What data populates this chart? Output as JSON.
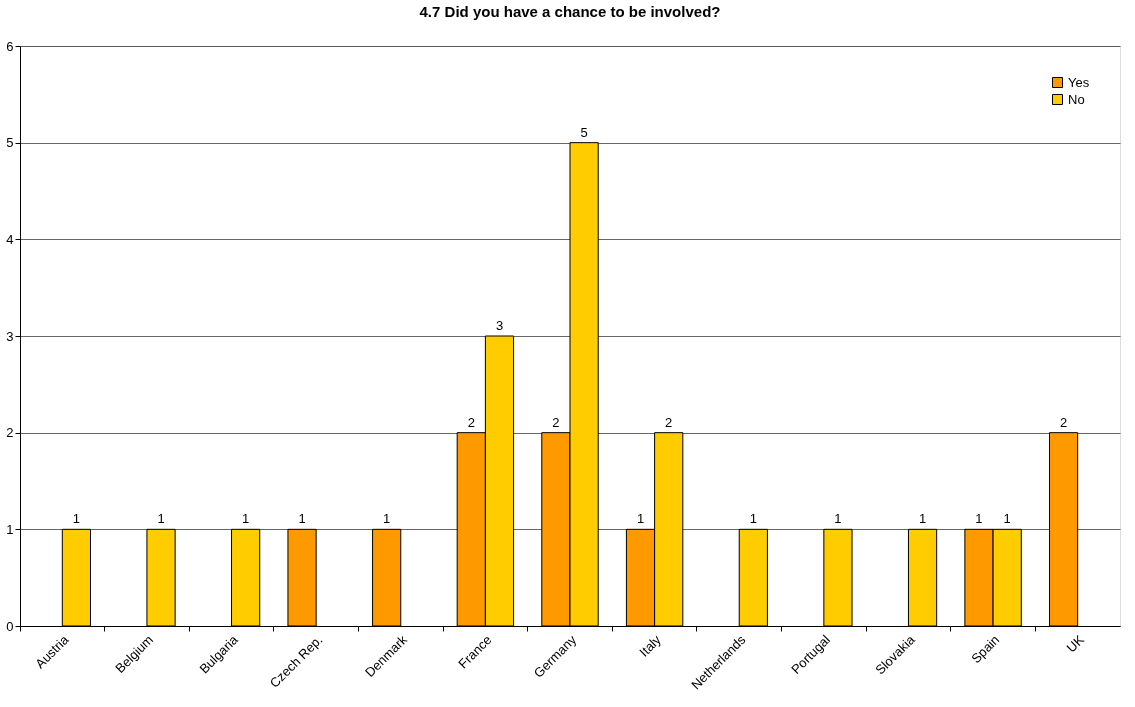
{
  "chart_data": {
    "type": "bar",
    "title": "4.7 Did you have a chance to be involved?",
    "categories": [
      "Austria",
      "Belgium",
      "Bulgaria",
      "Czech Rep.",
      "Denmark",
      "France",
      "Germany",
      "Italy",
      "Netherlands",
      "Portugal",
      "Slovakia",
      "Spain",
      "UK"
    ],
    "series": [
      {
        "name": "Yes",
        "color": "#ff9900",
        "values": [
          null,
          null,
          null,
          1,
          1,
          2,
          2,
          1,
          null,
          null,
          null,
          1,
          2
        ]
      },
      {
        "name": "No",
        "color": "#ffcc00",
        "values": [
          1,
          1,
          1,
          null,
          null,
          3,
          5,
          2,
          1,
          1,
          1,
          1,
          null
        ]
      }
    ],
    "ylim": [
      0,
      6
    ],
    "yticks": [
      0,
      1,
      2,
      3,
      4,
      5,
      6
    ],
    "grid": "y",
    "legend": "top right",
    "data_labels": true
  }
}
